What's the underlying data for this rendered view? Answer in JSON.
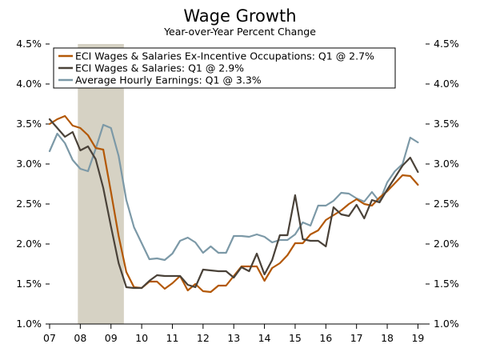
{
  "chart_data": {
    "type": "line",
    "title": "Wage Growth",
    "subtitle": "Year-over-Year Percent Change",
    "xlabel": "",
    "ylabel": "",
    "ylim": [
      1.0,
      4.5
    ],
    "xlim": [
      2007.0,
      2019.25
    ],
    "grid": false,
    "legend_position": "top-left",
    "y_ticks": [
      1.0,
      1.5,
      2.0,
      2.5,
      3.0,
      3.5,
      4.0,
      4.5
    ],
    "y_tick_labels": [
      "1.0%",
      "1.5%",
      "2.0%",
      "2.5%",
      "3.0%",
      "3.5%",
      "4.0%",
      "4.5%"
    ],
    "x_ticks": [
      2007,
      2008,
      2009,
      2010,
      2011,
      2012,
      2013,
      2014,
      2015,
      2016,
      2017,
      2018,
      2019
    ],
    "x_tick_labels": [
      "07",
      "08",
      "09",
      "10",
      "11",
      "12",
      "13",
      "14",
      "15",
      "16",
      "17",
      "18",
      "19"
    ],
    "recession": {
      "start": 2007.92,
      "end": 2009.42,
      "color": "#d6d2c4"
    },
    "x": [
      2007.0,
      2007.25,
      2007.5,
      2007.75,
      2008.0,
      2008.25,
      2008.5,
      2008.75,
      2009.0,
      2009.25,
      2009.5,
      2009.75,
      2010.0,
      2010.25,
      2010.5,
      2010.75,
      2011.0,
      2011.25,
      2011.5,
      2011.75,
      2012.0,
      2012.25,
      2012.5,
      2012.75,
      2013.0,
      2013.25,
      2013.5,
      2013.75,
      2014.0,
      2014.25,
      2014.5,
      2014.75,
      2015.0,
      2015.25,
      2015.5,
      2015.75,
      2016.0,
      2016.25,
      2016.5,
      2016.75,
      2017.0,
      2017.25,
      2017.5,
      2017.75,
      2018.0,
      2018.25,
      2018.5,
      2018.75,
      2019.0
    ],
    "series": [
      {
        "name": "ECI Wages & Salaries Ex-Incentive Occupations: Q1 @ 2.7%",
        "color": "#b35806",
        "values": [
          3.5,
          3.56,
          3.6,
          3.48,
          3.45,
          3.36,
          3.2,
          3.18,
          2.65,
          2.1,
          1.65,
          1.46,
          1.45,
          1.53,
          1.53,
          1.44,
          1.51,
          1.6,
          1.42,
          1.5,
          1.41,
          1.4,
          1.48,
          1.48,
          1.6,
          1.72,
          1.72,
          1.72,
          1.54,
          1.7,
          1.76,
          1.86,
          2.01,
          2.01,
          2.12,
          2.17,
          2.3,
          2.36,
          2.42,
          2.5,
          2.56,
          2.5,
          2.48,
          2.58,
          2.66,
          2.76,
          2.86,
          2.85,
          2.74
        ]
      },
      {
        "name": "ECI Wages & Salaries: Q1 @ 2.9%",
        "color": "#4a4239",
        "values": [
          3.56,
          3.45,
          3.34,
          3.4,
          3.17,
          3.22,
          3.06,
          2.7,
          2.22,
          1.76,
          1.46,
          1.45,
          1.45,
          1.54,
          1.61,
          1.6,
          1.6,
          1.6,
          1.49,
          1.46,
          1.68,
          1.67,
          1.66,
          1.66,
          1.58,
          1.71,
          1.66,
          1.88,
          1.62,
          1.8,
          2.11,
          2.11,
          2.61,
          2.06,
          2.04,
          2.04,
          1.97,
          2.46,
          2.37,
          2.35,
          2.49,
          2.32,
          2.55,
          2.52,
          2.68,
          2.83,
          2.98,
          3.08,
          2.9
        ]
      },
      {
        "name": "Average Hourly Earnings: Q1 @ 3.3%",
        "color": "#7c99a7",
        "values": [
          3.16,
          3.38,
          3.26,
          3.05,
          2.94,
          2.91,
          3.19,
          3.49,
          3.45,
          3.1,
          2.55,
          2.21,
          2.01,
          1.81,
          1.82,
          1.8,
          1.88,
          2.04,
          2.08,
          2.02,
          1.89,
          1.97,
          1.89,
          1.89,
          2.1,
          2.1,
          2.09,
          2.12,
          2.09,
          2.02,
          2.05,
          2.05,
          2.12,
          2.27,
          2.23,
          2.48,
          2.48,
          2.54,
          2.64,
          2.63,
          2.57,
          2.53,
          2.65,
          2.53,
          2.77,
          2.91,
          3.0,
          3.33,
          3.27
        ]
      }
    ]
  }
}
